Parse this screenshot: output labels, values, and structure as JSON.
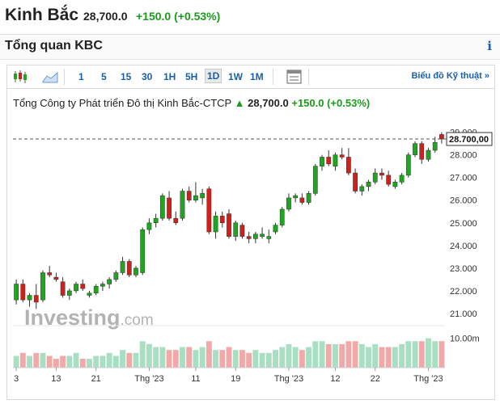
{
  "header": {
    "name": "Kinh Bắc",
    "price": "28,700.0",
    "change": "+150.0 (+0.53%)"
  },
  "section": {
    "title": "Tổng quan KBC",
    "info_label": "i"
  },
  "toolbar": {
    "intervals": [
      "1",
      "5",
      "15",
      "30",
      "1H",
      "5H",
      "1D",
      "1W",
      "1M"
    ],
    "active_interval": "1D",
    "tech_link": "Biểu đồ Kỹ thuật »"
  },
  "chart_title": {
    "company": "Tổng Công ty Phát triển Đô thị Kinh Bắc-CTCP",
    "arrow": "▲",
    "price": "28,700.0",
    "change": "+150.0 (+0.53%)"
  },
  "watermark": {
    "brand": "Investing",
    "suffix": ".com"
  },
  "colors": {
    "up": "#1fa51f",
    "down": "#d0201b",
    "vol_up": "#a8dfc2",
    "vol_down": "#f0a8a8"
  },
  "chart_data": {
    "type": "candlestick",
    "price_label": "28.700,00",
    "ylim": [
      20500,
      29200
    ],
    "y_ticks": [
      {
        "v": 29000,
        "label": "29.000"
      },
      {
        "v": 28000,
        "label": "28.000"
      },
      {
        "v": 27000,
        "label": "27.000"
      },
      {
        "v": 26000,
        "label": "26.000"
      },
      {
        "v": 25000,
        "label": "25.000"
      },
      {
        "v": 24000,
        "label": "24.000"
      },
      {
        "v": 23000,
        "label": "23.000"
      },
      {
        "v": 22000,
        "label": "22.000"
      },
      {
        "v": 21000,
        "label": "21.000"
      }
    ],
    "volume_tick": "10.00m",
    "x_ticks": [
      {
        "i": 0,
        "label": "3"
      },
      {
        "i": 6,
        "label": "13"
      },
      {
        "i": 12,
        "label": "21"
      },
      {
        "i": 20,
        "label": "Thg '23"
      },
      {
        "i": 27,
        "label": "11"
      },
      {
        "i": 33,
        "label": "19"
      },
      {
        "i": 41,
        "label": "Thg '23"
      },
      {
        "i": 48,
        "label": "12"
      },
      {
        "i": 54,
        "label": "22"
      },
      {
        "i": 62,
        "label": "Thg '23"
      }
    ],
    "candles": [
      {
        "o": 21600,
        "h": 22500,
        "l": 21400,
        "c": 22300
      },
      {
        "o": 22300,
        "h": 22500,
        "l": 21500,
        "c": 21600
      },
      {
        "o": 21600,
        "h": 21900,
        "l": 21300,
        "c": 21800
      },
      {
        "o": 21800,
        "h": 22300,
        "l": 21200,
        "c": 21500
      },
      {
        "o": 21600,
        "h": 22900,
        "l": 21500,
        "c": 22800
      },
      {
        "o": 22800,
        "h": 23100,
        "l": 22600,
        "c": 22700
      },
      {
        "o": 22600,
        "h": 22800,
        "l": 22400,
        "c": 22500
      },
      {
        "o": 22400,
        "h": 22600,
        "l": 21700,
        "c": 21800
      },
      {
        "o": 21800,
        "h": 22100,
        "l": 21600,
        "c": 22000
      },
      {
        "o": 22000,
        "h": 22400,
        "l": 21900,
        "c": 22300
      },
      {
        "o": 22300,
        "h": 22500,
        "l": 22000,
        "c": 22100
      },
      {
        "o": 21800,
        "h": 22000,
        "l": 21700,
        "c": 21900
      },
      {
        "o": 21900,
        "h": 22300,
        "l": 21800,
        "c": 22200
      },
      {
        "o": 22200,
        "h": 22400,
        "l": 22000,
        "c": 22300
      },
      {
        "o": 22300,
        "h": 22600,
        "l": 22100,
        "c": 22500
      },
      {
        "o": 22500,
        "h": 22900,
        "l": 22400,
        "c": 22800
      },
      {
        "o": 22800,
        "h": 23500,
        "l": 22700,
        "c": 23300
      },
      {
        "o": 23300,
        "h": 23400,
        "l": 22600,
        "c": 22700
      },
      {
        "o": 22700,
        "h": 23100,
        "l": 22600,
        "c": 23000
      },
      {
        "o": 22800,
        "h": 24800,
        "l": 22700,
        "c": 24700
      },
      {
        "o": 24700,
        "h": 25200,
        "l": 24500,
        "c": 25000
      },
      {
        "o": 25000,
        "h": 25400,
        "l": 24800,
        "c": 25200
      },
      {
        "o": 25200,
        "h": 26300,
        "l": 25100,
        "c": 26200
      },
      {
        "o": 26100,
        "h": 26400,
        "l": 25100,
        "c": 25200
      },
      {
        "o": 25200,
        "h": 25500,
        "l": 24900,
        "c": 25000
      },
      {
        "o": 25200,
        "h": 26500,
        "l": 25100,
        "c": 26400
      },
      {
        "o": 26400,
        "h": 26600,
        "l": 25900,
        "c": 26000
      },
      {
        "o": 26000,
        "h": 26800,
        "l": 25900,
        "c": 26200
      },
      {
        "o": 26100,
        "h": 26500,
        "l": 25800,
        "c": 26300
      },
      {
        "o": 26500,
        "h": 26600,
        "l": 24500,
        "c": 24600
      },
      {
        "o": 24600,
        "h": 25500,
        "l": 24300,
        "c": 25300
      },
      {
        "o": 25300,
        "h": 25500,
        "l": 24800,
        "c": 25000
      },
      {
        "o": 25400,
        "h": 25600,
        "l": 24300,
        "c": 24400
      },
      {
        "o": 24400,
        "h": 25100,
        "l": 24200,
        "c": 25000
      },
      {
        "o": 24900,
        "h": 25000,
        "l": 24300,
        "c": 24400
      },
      {
        "o": 24400,
        "h": 24600,
        "l": 24100,
        "c": 24300
      },
      {
        "o": 24300,
        "h": 24600,
        "l": 24100,
        "c": 24500
      },
      {
        "o": 24400,
        "h": 24800,
        "l": 24300,
        "c": 24500
      },
      {
        "o": 24300,
        "h": 24700,
        "l": 24100,
        "c": 24400
      },
      {
        "o": 24600,
        "h": 25000,
        "l": 24500,
        "c": 24900
      },
      {
        "o": 24900,
        "h": 25700,
        "l": 24800,
        "c": 25600
      },
      {
        "o": 25600,
        "h": 26300,
        "l": 25500,
        "c": 26100
      },
      {
        "o": 26100,
        "h": 26300,
        "l": 25900,
        "c": 26200
      },
      {
        "o": 26100,
        "h": 26300,
        "l": 25800,
        "c": 25900
      },
      {
        "o": 25900,
        "h": 26400,
        "l": 25800,
        "c": 26300
      },
      {
        "o": 26300,
        "h": 27600,
        "l": 26200,
        "c": 27500
      },
      {
        "o": 27500,
        "h": 28000,
        "l": 27300,
        "c": 27900
      },
      {
        "o": 27900,
        "h": 28200,
        "l": 27500,
        "c": 27600
      },
      {
        "o": 27500,
        "h": 28100,
        "l": 27300,
        "c": 28000
      },
      {
        "o": 28000,
        "h": 28300,
        "l": 27800,
        "c": 27900
      },
      {
        "o": 27900,
        "h": 28300,
        "l": 27100,
        "c": 27200
      },
      {
        "o": 27200,
        "h": 27400,
        "l": 26300,
        "c": 26400
      },
      {
        "o": 26400,
        "h": 26700,
        "l": 26200,
        "c": 26600
      },
      {
        "o": 26600,
        "h": 26900,
        "l": 26400,
        "c": 26800
      },
      {
        "o": 26800,
        "h": 27400,
        "l": 26700,
        "c": 27200
      },
      {
        "o": 27200,
        "h": 27400,
        "l": 26900,
        "c": 27100
      },
      {
        "o": 27100,
        "h": 27300,
        "l": 26600,
        "c": 26700
      },
      {
        "o": 26600,
        "h": 26900,
        "l": 26500,
        "c": 26800
      },
      {
        "o": 26800,
        "h": 27200,
        "l": 26700,
        "c": 27100
      },
      {
        "o": 27100,
        "h": 28100,
        "l": 27000,
        "c": 28000
      },
      {
        "o": 28000,
        "h": 28600,
        "l": 27900,
        "c": 28500
      },
      {
        "o": 28500,
        "h": 28600,
        "l": 27600,
        "c": 27800
      },
      {
        "o": 27800,
        "h": 28300,
        "l": 27700,
        "c": 28200
      },
      {
        "o": 28200,
        "h": 28800,
        "l": 28100,
        "c": 28550
      },
      {
        "o": 28900,
        "h": 29000,
        "l": 28500,
        "c": 28700
      }
    ],
    "volume": [
      4,
      5,
      4,
      5,
      5,
      4,
      3,
      4,
      4,
      5,
      3,
      3,
      4,
      4,
      5,
      4,
      6,
      5,
      5,
      9,
      8,
      7,
      7,
      6,
      6,
      7,
      7,
      6,
      7,
      9,
      6,
      6,
      7,
      6,
      6,
      5,
      6,
      5,
      5,
      6,
      7,
      8,
      7,
      6,
      7,
      9,
      9,
      8,
      8,
      8,
      9,
      9,
      8,
      7,
      8,
      7,
      7,
      7,
      8,
      9,
      9,
      9,
      10,
      9,
      9
    ]
  }
}
